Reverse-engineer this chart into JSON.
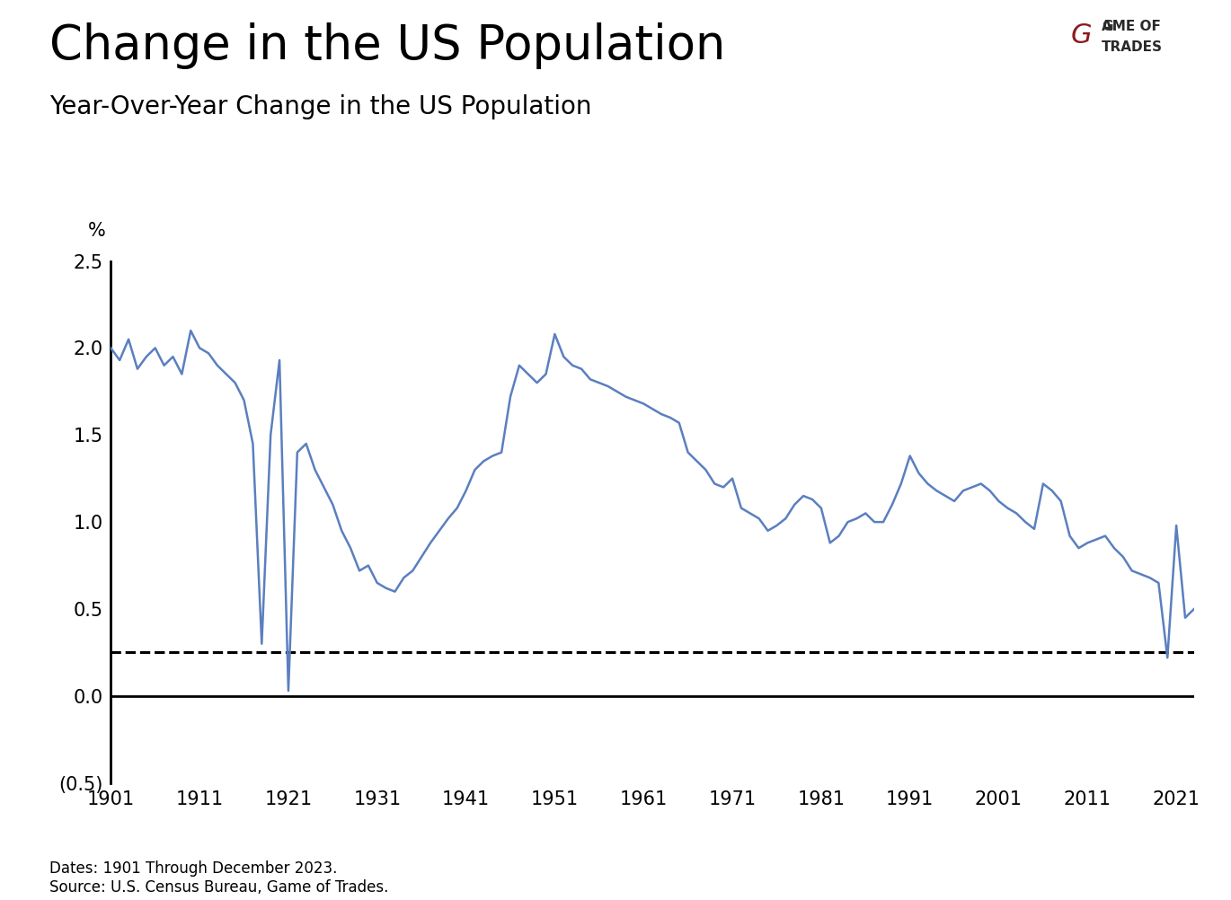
{
  "title": "Change in the US Population",
  "subtitle": "Year-Over-Year Change in the US Population",
  "ylabel": "%",
  "xlabel_note": "Dates: 1901 Through December 2023.\nSource: U.S. Census Bureau, Game of Trades.",
  "ylim": [
    -0.5,
    2.5
  ],
  "xlim": [
    1901,
    2023
  ],
  "xticks": [
    1901,
    1911,
    1921,
    1931,
    1941,
    1951,
    1961,
    1971,
    1981,
    1991,
    2001,
    2011,
    2021
  ],
  "yticks": [
    -0.5,
    0.0,
    0.5,
    1.0,
    1.5,
    2.0,
    2.5
  ],
  "ytick_labels": [
    "(0.5)",
    "0.0",
    "0.5",
    "1.0",
    "1.5",
    "2.0",
    "2.5"
  ],
  "dashed_line_y": 0.25,
  "line_color": "#5b7fbf",
  "background_color": "#ffffff",
  "title_fontsize": 38,
  "subtitle_fontsize": 20,
  "years": [
    1901,
    1902,
    1903,
    1904,
    1905,
    1906,
    1907,
    1908,
    1909,
    1910,
    1911,
    1912,
    1913,
    1914,
    1915,
    1916,
    1917,
    1918,
    1919,
    1920,
    1921,
    1922,
    1923,
    1924,
    1925,
    1926,
    1927,
    1928,
    1929,
    1930,
    1931,
    1932,
    1933,
    1934,
    1935,
    1936,
    1937,
    1938,
    1939,
    1940,
    1941,
    1942,
    1943,
    1944,
    1945,
    1946,
    1947,
    1948,
    1949,
    1950,
    1951,
    1952,
    1953,
    1954,
    1955,
    1956,
    1957,
    1958,
    1959,
    1960,
    1961,
    1962,
    1963,
    1964,
    1965,
    1966,
    1967,
    1968,
    1969,
    1970,
    1971,
    1972,
    1973,
    1974,
    1975,
    1976,
    1977,
    1978,
    1979,
    1980,
    1981,
    1982,
    1983,
    1984,
    1985,
    1986,
    1987,
    1988,
    1989,
    1990,
    1991,
    1992,
    1993,
    1994,
    1995,
    1996,
    1997,
    1998,
    1999,
    2000,
    2001,
    2002,
    2003,
    2004,
    2005,
    2006,
    2007,
    2008,
    2009,
    2010,
    2011,
    2012,
    2013,
    2014,
    2015,
    2016,
    2017,
    2018,
    2019,
    2020,
    2021,
    2022,
    2023
  ],
  "values": [
    2.0,
    1.93,
    2.05,
    1.88,
    1.95,
    2.0,
    1.9,
    1.95,
    1.85,
    2.1,
    2.0,
    1.97,
    1.9,
    1.85,
    1.8,
    1.7,
    1.45,
    0.3,
    1.5,
    1.93,
    0.03,
    1.4,
    1.45,
    1.3,
    1.2,
    1.1,
    0.95,
    0.85,
    0.72,
    0.75,
    0.65,
    0.62,
    0.6,
    0.68,
    0.72,
    0.8,
    0.88,
    0.95,
    1.02,
    1.08,
    1.18,
    1.3,
    1.35,
    1.38,
    1.4,
    1.72,
    1.9,
    1.85,
    1.8,
    1.85,
    2.08,
    1.95,
    1.9,
    1.88,
    1.82,
    1.8,
    1.78,
    1.75,
    1.72,
    1.7,
    1.68,
    1.65,
    1.62,
    1.6,
    1.57,
    1.4,
    1.35,
    1.3,
    1.22,
    1.2,
    1.25,
    1.08,
    1.05,
    1.02,
    0.95,
    0.98,
    1.02,
    1.1,
    1.15,
    1.13,
    1.08,
    0.88,
    0.92,
    1.0,
    1.02,
    1.05,
    1.0,
    1.0,
    1.1,
    1.22,
    1.38,
    1.28,
    1.22,
    1.18,
    1.15,
    1.12,
    1.18,
    1.2,
    1.22,
    1.18,
    1.12,
    1.08,
    1.05,
    1.0,
    0.96,
    1.22,
    1.18,
    1.12,
    0.92,
    0.85,
    0.88,
    0.9,
    0.92,
    0.85,
    0.8,
    0.72,
    0.7,
    0.68,
    0.65,
    0.22,
    0.98,
    0.45,
    0.5
  ]
}
